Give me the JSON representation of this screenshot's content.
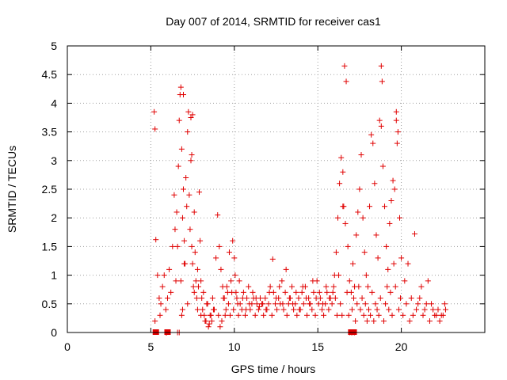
{
  "chart_data": {
    "type": "scatter",
    "title": "Day 007 of 2014, SRMTID for receiver cas1",
    "xlabel": "GPS time / hours",
    "ylabel": "SRMTID / TECUs",
    "xlim": [
      0,
      25
    ],
    "ylim": [
      0,
      5
    ],
    "xticks": [
      0,
      5,
      10,
      15,
      20
    ],
    "xtick_labels": [
      "0",
      "5",
      "10",
      "15",
      "20"
    ],
    "yticks": [
      0,
      0.5,
      1,
      1.5,
      2,
      2.5,
      3,
      3.5,
      4,
      4.5,
      5
    ],
    "ytick_labels": [
      "0",
      "0.5",
      "1",
      "1.5",
      "2",
      "2.5",
      "3",
      "3.5",
      "4",
      "4.5",
      "5"
    ],
    "grid": true,
    "marker": "+",
    "color": "#e00000",
    "series": [
      {
        "name": "cas1",
        "x": [
          5.25,
          5.3,
          5.4,
          5.5,
          5.55,
          5.6,
          5.7,
          5.8,
          5.9,
          6.0,
          6.1,
          6.2,
          6.3,
          6.4,
          6.45,
          6.5,
          6.55,
          6.6,
          6.65,
          6.7,
          6.75,
          6.8,
          6.85,
          6.9,
          6.95,
          7.0,
          7.05,
          7.1,
          7.15,
          7.2,
          7.25,
          7.3,
          7.35,
          7.4,
          7.45,
          7.5,
          7.55,
          7.6,
          7.65,
          7.7,
          7.75,
          7.8,
          7.85,
          7.9,
          7.95,
          8.0,
          8.05,
          8.1,
          8.15,
          8.2,
          8.3,
          8.4,
          8.5,
          8.6,
          8.7,
          8.8,
          8.9,
          9.0,
          9.1,
          9.2,
          9.3,
          9.4,
          9.5,
          9.6,
          9.7,
          9.8,
          9.9,
          10.0,
          10.1,
          10.2,
          10.3,
          10.5,
          10.7,
          10.9,
          11.1,
          11.3,
          11.5,
          11.7,
          11.9,
          12.1,
          12.3,
          12.5,
          12.7,
          12.9,
          13.1,
          13.3,
          13.5,
          13.7,
          13.9,
          14.1,
          14.3,
          14.5,
          14.7,
          14.9,
          15.1,
          15.3,
          15.5,
          15.7,
          15.9,
          16.0,
          16.1,
          16.2,
          16.3,
          16.4,
          16.5,
          16.6,
          16.7,
          16.8,
          16.9,
          17.0,
          17.1,
          17.2,
          17.3,
          17.4,
          17.5,
          17.6,
          17.7,
          17.8,
          17.9,
          18.0,
          18.1,
          18.2,
          18.3,
          18.4,
          18.5,
          18.6,
          18.7,
          18.8,
          18.9,
          19.0,
          19.1,
          19.2,
          19.3,
          19.4,
          19.5,
          19.6,
          19.7,
          19.8,
          19.9,
          20.0,
          20.2,
          20.4,
          20.6,
          20.8,
          21.0,
          21.2,
          21.4,
          21.6,
          21.8,
          22.0,
          22.2,
          22.4,
          22.6,
          6.85,
          6.9,
          6.95,
          7.4,
          7.45,
          7.5,
          16.5,
          16.55,
          18.8,
          18.85,
          19.7,
          19.75,
          5.2,
          5.25,
          5.9,
          5.95,
          16.9,
          17.0,
          17.1,
          17.2,
          6.6,
          6.7,
          6.8,
          7.0,
          7.2,
          7.6,
          7.8,
          8.0,
          8.25,
          8.35,
          8.45,
          8.55,
          8.65,
          8.75,
          9.05,
          9.15,
          9.25,
          9.35,
          9.45,
          9.55,
          9.65,
          9.75,
          9.85,
          9.95,
          10.05,
          10.15,
          10.25,
          10.35,
          10.45,
          10.55,
          10.65,
          10.75,
          10.85,
          10.95,
          11.05,
          11.15,
          11.25,
          11.35,
          11.45,
          11.55,
          11.65,
          11.75,
          11.85,
          11.95,
          12.05,
          12.15,
          12.25,
          12.35,
          12.45,
          12.55,
          12.65,
          12.75,
          12.85,
          12.95,
          13.05,
          13.15,
          13.25,
          13.35,
          13.45,
          13.55,
          13.65,
          13.75,
          13.85,
          13.95,
          14.05,
          14.15,
          14.25,
          14.35,
          14.45,
          14.55,
          14.65,
          14.75,
          14.85,
          14.95,
          15.05,
          15.15,
          15.25,
          15.35,
          15.45,
          15.55,
          15.65,
          15.75,
          15.85,
          15.95,
          16.05,
          16.15,
          16.25,
          16.35,
          16.45,
          16.65,
          16.75,
          16.85,
          17.05,
          17.15,
          17.25,
          17.35,
          17.45,
          17.55,
          17.65,
          17.75,
          17.85,
          17.95,
          18.05,
          18.15,
          18.25,
          18.35,
          18.45,
          18.55,
          18.65,
          18.75,
          18.95,
          19.05,
          19.15,
          19.25,
          19.35,
          19.45,
          19.55,
          19.65,
          19.85,
          19.95,
          20.1,
          20.3,
          20.5,
          20.7,
          20.9,
          21.1,
          21.3,
          21.5,
          21.7,
          21.9,
          22.1,
          22.3,
          22.5,
          22.65
        ],
        "y": [
          0.2,
          1.62,
          1.0,
          0.6,
          0.3,
          0.5,
          0.8,
          1.0,
          0.4,
          0.6,
          1.1,
          0.7,
          1.5,
          2.4,
          1.8,
          0.9,
          2.1,
          1.5,
          2.9,
          3.7,
          4.15,
          4.28,
          3.2,
          2.0,
          2.5,
          1.6,
          1.2,
          2.7,
          2.2,
          3.5,
          3.85,
          2.4,
          1.8,
          3.0,
          1.5,
          1.2,
          0.8,
          2.1,
          1.4,
          0.9,
          0.6,
          1.1,
          0.8,
          2.45,
          1.6,
          0.9,
          0.6,
          0.4,
          0.7,
          0.3,
          0.2,
          0.5,
          0.15,
          0.3,
          0.6,
          0.4,
          1.3,
          2.05,
          1.5,
          1.1,
          0.8,
          0.6,
          0.4,
          0.7,
          1.4,
          0.9,
          1.6,
          1.3,
          0.7,
          0.5,
          0.9,
          0.6,
          0.4,
          0.5,
          0.7,
          0.6,
          0.45,
          0.5,
          0.4,
          0.7,
          1.28,
          0.6,
          0.8,
          0.5,
          1.1,
          0.6,
          0.5,
          0.7,
          0.4,
          0.8,
          0.6,
          0.5,
          0.9,
          0.6,
          0.7,
          0.5,
          0.8,
          0.6,
          0.7,
          1.0,
          1.4,
          2.0,
          2.6,
          3.05,
          2.2,
          4.65,
          4.38,
          1.5,
          0.9,
          0.7,
          1.2,
          0.8,
          1.7,
          2.1,
          2.5,
          3.1,
          2.0,
          1.4,
          1.0,
          0.8,
          2.2,
          3.45,
          3.3,
          2.6,
          1.7,
          1.3,
          3.7,
          3.6,
          2.9,
          2.2,
          1.5,
          1.1,
          1.9,
          2.3,
          2.65,
          2.5,
          3.85,
          3.5,
          2.0,
          1.3,
          0.9,
          1.2,
          0.6,
          1.72,
          0.5,
          0.8,
          0.4,
          0.9,
          0.5,
          0.3,
          0.4,
          0.3,
          0.5,
          0.3,
          0.4,
          4.15,
          3.75,
          3.1,
          3.8,
          2.8,
          2.2,
          4.65,
          4.38,
          3.7,
          3.3,
          3.85,
          3.55,
          0.0,
          0.0,
          0.0,
          0.0,
          0.0,
          0.0,
          0.0,
          0.0,
          0.9,
          1.2,
          0.5,
          0.7,
          0.4,
          0.3,
          0.2,
          0.5,
          0.1,
          0.3,
          0.2,
          0.4,
          0.3,
          0.1,
          0.2,
          0.6,
          0.3,
          0.8,
          0.5,
          0.3,
          0.7,
          0.4,
          1.0,
          0.6,
          0.3,
          0.5,
          0.4,
          0.7,
          0.3,
          0.6,
          0.8,
          0.4,
          0.5,
          0.6,
          0.3,
          0.5,
          0.4,
          0.6,
          0.5,
          0.3,
          0.6,
          0.4,
          0.5,
          0.8,
          0.3,
          0.7,
          0.5,
          0.4,
          0.6,
          0.5,
          0.9,
          0.4,
          0.7,
          0.3,
          0.5,
          0.6,
          0.8,
          0.4,
          0.5,
          0.3,
          0.6,
          0.4,
          0.7,
          0.5,
          0.8,
          0.3,
          0.6,
          0.5,
          0.4,
          0.7,
          0.3,
          0.9,
          0.5,
          0.6,
          0.4,
          0.3,
          0.5,
          0.7,
          0.4,
          0.6,
          0.5,
          0.8,
          0.6,
          0.3,
          1.0,
          0.5,
          0.3,
          1.9,
          0.7,
          0.3,
          0.4,
          0.6,
          0.2,
          0.5,
          0.8,
          0.4,
          0.6,
          0.3,
          0.5,
          0.2,
          0.4,
          0.3,
          0.7,
          0.2,
          0.5,
          0.4,
          0.3,
          0.6,
          0.2,
          0.5,
          0.8,
          0.4,
          0.7,
          0.3,
          1.2,
          0.8,
          0.4,
          0.6,
          0.3,
          0.5,
          0.2,
          0.3,
          0.4,
          0.6,
          0.3,
          0.5,
          0.2,
          0.4,
          0.3,
          0.2,
          0.3,
          0.4
        ]
      }
    ],
    "squares_x": [
      5.3,
      6.0,
      17.0,
      17.15
    ],
    "squares_y": [
      0,
      0,
      0,
      0
    ]
  }
}
